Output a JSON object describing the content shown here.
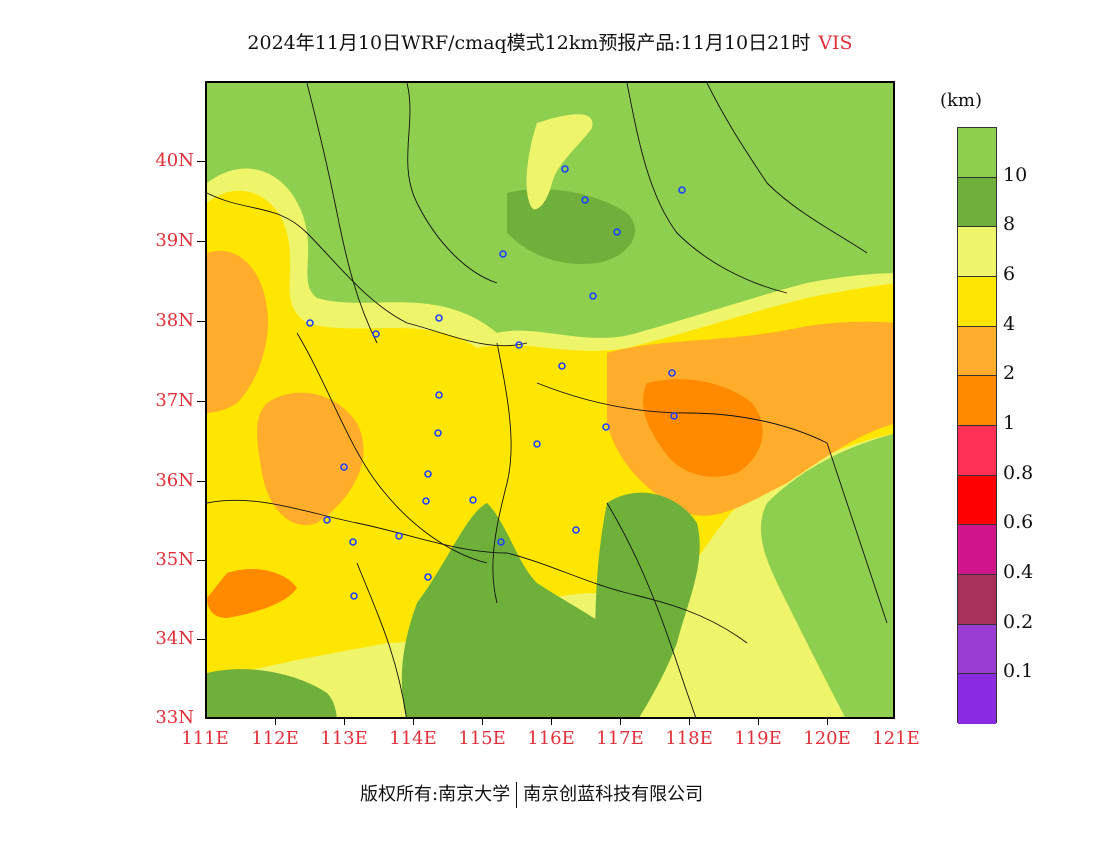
{
  "header": {
    "title": "2024年11月10日WRF/cmaq模式12km预报产品:11月10日21时",
    "variable": "VIS"
  },
  "axes": {
    "lat_labels": [
      "40N",
      "39N",
      "38N",
      "37N",
      "36N",
      "35N",
      "34N",
      "33N"
    ],
    "lon_labels": [
      "111E",
      "112E",
      "113E",
      "114E",
      "115E",
      "116E",
      "117E",
      "118E",
      "119E",
      "120E",
      "121E"
    ]
  },
  "legend": {
    "unit": "(km)",
    "labels": [
      "10",
      "8",
      "6",
      "4",
      "2",
      "1",
      "0.8",
      "0.6",
      "0.4",
      "0.2",
      "0.1"
    ],
    "colors": [
      "#8ecf50",
      "#6fb03a",
      "#eff56a",
      "#ffe600",
      "#ffad2a",
      "#ff8a00",
      "#ff2f55",
      "#ff0000",
      "#d0148a",
      "#a8305a",
      "#9a3bd1",
      "#8a2be2"
    ]
  },
  "footer": {
    "copyright": "版权所有:南京大学",
    "company": "南京创蓝科技有限公司"
  },
  "colors": {
    "axis_label": "#e0303a",
    "station_marker": "#2040ff"
  }
}
